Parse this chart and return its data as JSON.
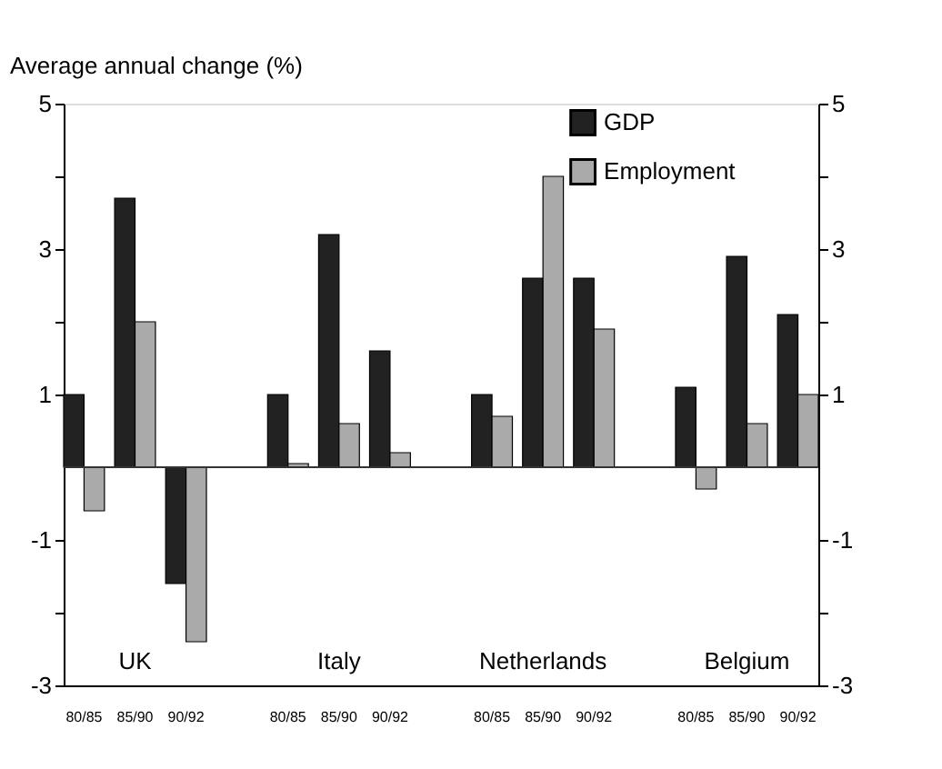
{
  "chart_data": {
    "type": "bar",
    "ylabel": "Average annual change (%)",
    "categories": [
      "80/85",
      "85/90",
      "90/92",
      "80/85",
      "85/90",
      "90/92",
      "80/85",
      "85/90",
      "90/92",
      "80/85",
      "85/90",
      "90/92"
    ],
    "series": [
      {
        "name": "GDP",
        "color": "#222222",
        "values": [
          1.0,
          3.7,
          -1.6,
          1.0,
          3.2,
          1.6,
          1.0,
          2.6,
          2.6,
          1.1,
          2.9,
          2.1
        ]
      },
      {
        "name": "Employment",
        "color": "#aaaaaa",
        "values": [
          -0.6,
          2.0,
          -2.4,
          0.05,
          0.6,
          0.2,
          0.7,
          4.0,
          1.9,
          -0.3,
          0.6,
          1.0
        ]
      }
    ],
    "annotations": [
      "UK",
      "Italy",
      "Netherlands",
      "Belgium"
    ],
    "ylim": [
      -3,
      5
    ],
    "yticks": [
      -3,
      {
        "value": -2,
        "label": null
      },
      -1,
      1,
      {
        "value": 2,
        "label": null
      },
      3,
      {
        "value": 4,
        "label": null
      },
      5
    ],
    "y2lim": [
      -3,
      5
    ],
    "y2ticks": [
      -3,
      {
        "value": -2,
        "label": null
      },
      -1,
      1,
      {
        "value": 2,
        "label": null
      },
      3,
      {
        "value": 4,
        "label": null
      },
      5
    ],
    "ref_lines": [
      {
        "axis": "y",
        "value": 0,
        "color": "#333333"
      }
    ],
    "grid": false,
    "legend": "top right"
  }
}
